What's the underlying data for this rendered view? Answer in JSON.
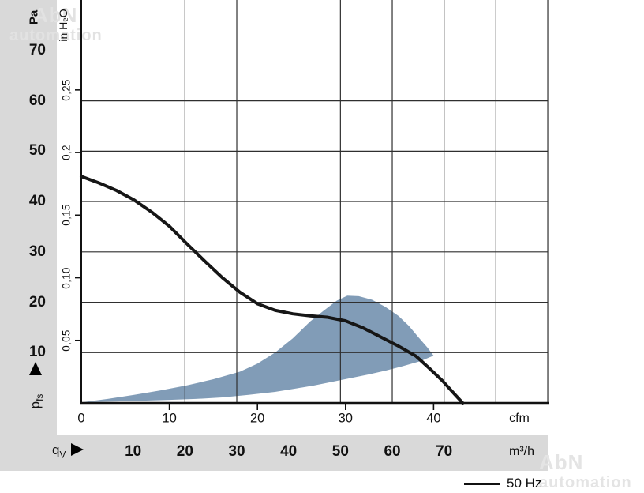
{
  "watermark": {
    "brand": "AbN",
    "sub": "automation"
  },
  "colors": {
    "background": "#ffffff",
    "sidebar_gray": "#d9d9d9",
    "strip_gray": "#d9d9d9",
    "operating_region_blue": "#7d99b5",
    "curve_black": "#161616",
    "grid": "#2f2f2f",
    "watermark_gray": "#e3e3e3"
  },
  "chart_data": {
    "type": "line",
    "legend": [
      {
        "label": "50 Hz"
      }
    ],
    "x_axis": {
      "primary_unit": "cfm",
      "primary_ticks": [
        0,
        10,
        20,
        30,
        40
      ],
      "secondary_unit": "m³/h",
      "secondary_ticks": [
        10,
        20,
        30,
        40,
        50,
        60,
        70
      ],
      "flow_symbol": "q",
      "flow_symbol_sub": "V"
    },
    "y_axis": {
      "primary_unit": "Pa",
      "primary_ticks": [
        70,
        60,
        50,
        40,
        30,
        20,
        10
      ],
      "secondary_unit": "in H₂O",
      "secondary_ticks": [
        {
          "label": "0,25",
          "pa": 62.16
        },
        {
          "label": "0,2",
          "pa": 49.73
        },
        {
          "label": "0,15",
          "pa": 37.3
        },
        {
          "label": "0,10",
          "pa": 24.86
        },
        {
          "label": "0,05",
          "pa": 12.43
        }
      ],
      "pressure_symbol": "p",
      "pressure_symbol_sub": "fs"
    },
    "gridlines": {
      "horizontal_pa": [
        10,
        20,
        30,
        40,
        50,
        60
      ],
      "vertical_m3h": [
        20,
        30,
        50,
        60,
        70,
        80,
        90
      ]
    },
    "series": [
      {
        "name": "50 Hz",
        "points_cfm_pa": [
          [
            0,
            45
          ],
          [
            2,
            43.7
          ],
          [
            4,
            42.2
          ],
          [
            6,
            40.3
          ],
          [
            8,
            37.9
          ],
          [
            10,
            35.1
          ],
          [
            12,
            31.6
          ],
          [
            14,
            28.2
          ],
          [
            16,
            24.9
          ],
          [
            18,
            22.0
          ],
          [
            20,
            19.7
          ],
          [
            22,
            18.4
          ],
          [
            24,
            17.7
          ],
          [
            26,
            17.3
          ],
          [
            28,
            17.0
          ],
          [
            30,
            16.3
          ],
          [
            32,
            14.9
          ],
          [
            34,
            13.1
          ],
          [
            36,
            11.3
          ],
          [
            38,
            9.3
          ],
          [
            39.5,
            6.9
          ],
          [
            41,
            4.4
          ],
          [
            42.3,
            1.9
          ],
          [
            43.3,
            0
          ]
        ]
      }
    ],
    "operating_region_cfm_pa": [
      [
        0.3,
        0.2
      ],
      [
        3,
        0.8
      ],
      [
        6,
        1.6
      ],
      [
        9,
        2.5
      ],
      [
        12,
        3.5
      ],
      [
        15,
        4.7
      ],
      [
        18,
        6.2
      ],
      [
        20,
        7.8
      ],
      [
        22,
        10.0
      ],
      [
        24,
        12.8
      ],
      [
        26,
        16.2
      ],
      [
        27.5,
        18.3
      ],
      [
        29,
        20.3
      ],
      [
        30.2,
        21.3
      ],
      [
        31.5,
        21.2
      ],
      [
        33,
        20.5
      ],
      [
        34.5,
        19.1
      ],
      [
        36,
        17.3
      ],
      [
        37.2,
        15.3
      ],
      [
        38.3,
        13.0
      ],
      [
        39.3,
        11.0
      ],
      [
        40,
        9.4
      ],
      [
        38.5,
        8.3
      ],
      [
        36.5,
        7.3
      ],
      [
        34.5,
        6.4
      ],
      [
        32.5,
        5.6
      ],
      [
        30.5,
        4.9
      ],
      [
        28.5,
        4.2
      ],
      [
        26.5,
        3.5
      ],
      [
        24.5,
        2.9
      ],
      [
        22,
        2.2
      ],
      [
        19,
        1.6
      ],
      [
        16,
        1.1
      ],
      [
        13,
        0.8
      ],
      [
        10,
        0.6
      ],
      [
        7,
        0.45
      ],
      [
        4,
        0.3
      ],
      [
        1.5,
        0.22
      ]
    ]
  }
}
